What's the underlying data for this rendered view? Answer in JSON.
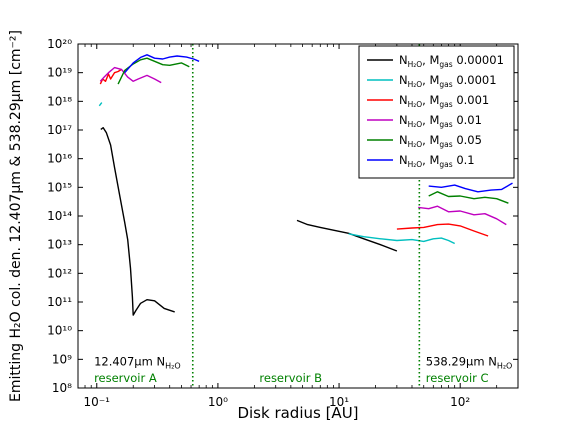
{
  "chart_data": {
    "type": "line",
    "xscale": "log",
    "yscale": "log",
    "xlabel": "Disk radius [AU]",
    "ylabel": "Emitting H₂O col. den. 12.407μm & 538.29μm [cm⁻²]",
    "xlim": [
      0.07,
      300
    ],
    "ylim": [
      100000000.0,
      1e+20
    ],
    "x_ticks": [
      {
        "value": 0.1,
        "label": "10⁻¹"
      },
      {
        "value": 1,
        "label": "10⁰"
      },
      {
        "value": 10,
        "label": "10¹"
      },
      {
        "value": 100,
        "label": "10²"
      }
    ],
    "y_ticks": [
      {
        "value": 100000000.0,
        "label": "10⁸"
      },
      {
        "value": 1000000000.0,
        "label": "10⁹"
      },
      {
        "value": 10000000000.0,
        "label": "10¹⁰"
      },
      {
        "value": 100000000000.0,
        "label": "10¹¹"
      },
      {
        "value": 1000000000000.0,
        "label": "10¹²"
      },
      {
        "value": 10000000000000.0,
        "label": "10¹³"
      },
      {
        "value": 100000000000000.0,
        "label": "10¹⁴"
      },
      {
        "value": 1000000000000000.0,
        "label": "10¹⁵"
      },
      {
        "value": 1e+16,
        "label": "10¹⁶"
      },
      {
        "value": 1e+17,
        "label": "10¹⁷"
      },
      {
        "value": 1e+18,
        "label": "10¹⁸"
      },
      {
        "value": 1e+19,
        "label": "10¹⁹"
      },
      {
        "value": 1e+20,
        "label": "10²⁰"
      }
    ],
    "vlines": [
      {
        "x": 0.62,
        "color": "#008000"
      },
      {
        "x": 46,
        "color": "#008000"
      }
    ],
    "annotations": [
      {
        "text": "12.407μm N",
        "sub": "H₂O",
        "x": 0.095,
        "y": 600000000.0,
        "color": "#000000"
      },
      {
        "text": "reservoir A",
        "x": 0.095,
        "y": 160000000.0,
        "color": "#008000"
      },
      {
        "text": "reservoir B",
        "x": 2.2,
        "y": 160000000.0,
        "color": "#008000"
      },
      {
        "text": "538.29μm N",
        "sub": "H₂O",
        "x": 52,
        "y": 600000000.0,
        "color": "#000000"
      },
      {
        "text": "reservoir C",
        "x": 52,
        "y": 160000000.0,
        "color": "#008000"
      }
    ],
    "legend_position": "top-right",
    "series": [
      {
        "name": "N_H2O, M_gas 0.00001",
        "legend": {
          "main": "N",
          "sub": "H₂O",
          "mid": ", M",
          "sub2": "gas",
          "val": " 0.00001"
        },
        "color": "#000000",
        "segments": [
          [
            [
              0.108,
              1.05e+17
            ],
            [
              0.113,
              1.2e+17
            ],
            [
              0.12,
              8e+16
            ],
            [
              0.13,
              3e+16
            ],
            [
              0.14,
              5000000000000000.0
            ],
            [
              0.155,
              500000000000000.0
            ],
            [
              0.17,
              60000000000000.0
            ],
            [
              0.18,
              15000000000000.0
            ],
            [
              0.19,
              1500000000000.0
            ],
            [
              0.197,
              150000000000.0
            ],
            [
              0.2,
              35000000000.0
            ],
            [
              0.21,
              50000000000.0
            ],
            [
              0.23,
              90000000000.0
            ],
            [
              0.26,
              120000000000.0
            ],
            [
              0.3,
              110000000000.0
            ],
            [
              0.36,
              60000000000.0
            ],
            [
              0.44,
              45000000000.0
            ]
          ],
          [
            [
              4.5,
              70000000000000.0
            ],
            [
              5.5,
              50000000000000.0
            ],
            [
              7,
              40000000000000.0
            ],
            [
              9,
              32000000000000.0
            ],
            [
              12,
              25000000000000.0
            ],
            [
              16,
              16000000000000.0
            ],
            [
              22,
              10000000000000.0
            ],
            [
              30,
              6000000000000.0
            ]
          ]
        ]
      },
      {
        "name": "N_H2O, M_gas 0.0001",
        "legend": {
          "main": "N",
          "sub": "H₂O",
          "mid": ", M",
          "sub2": "gas",
          "val": " 0.0001"
        },
        "color": "#00bfbf",
        "segments": [
          [
            [
              0.105,
              7e+17
            ],
            [
              0.11,
              9e+17
            ]
          ],
          [
            [
              12,
              24000000000000.0
            ],
            [
              16,
              19000000000000.0
            ],
            [
              22,
              16000000000000.0
            ],
            [
              30,
              14000000000000.0
            ],
            [
              40,
              15000000000000.0
            ],
            [
              50,
              13000000000000.0
            ],
            [
              60,
              16000000000000.0
            ],
            [
              70,
              17000000000000.0
            ],
            [
              80,
              14000000000000.0
            ],
            [
              90,
              11000000000000.0
            ]
          ]
        ]
      },
      {
        "name": "N_H2O, M_gas 0.001",
        "legend": {
          "main": "N",
          "sub": "H₂O",
          "mid": ", M",
          "sub2": "gas",
          "val": " 0.001"
        },
        "color": "#ff0000",
        "segments": [
          [
            [
              0.107,
              4e+18
            ],
            [
              0.112,
              6e+18
            ],
            [
              0.118,
              5e+18
            ],
            [
              0.125,
              9e+18
            ],
            [
              0.13,
              6e+18
            ],
            [
              0.14,
              1e+19
            ],
            [
              0.15,
              1.1e+19
            ],
            [
              0.16,
              1.3e+19
            ]
          ],
          [
            [
              30,
              35000000000000.0
            ],
            [
              40,
              38000000000000.0
            ],
            [
              50,
              40000000000000.0
            ],
            [
              65,
              50000000000000.0
            ],
            [
              80,
              52000000000000.0
            ],
            [
              100,
              45000000000000.0
            ],
            [
              130,
              30000000000000.0
            ],
            [
              170,
              20000000000000.0
            ]
          ]
        ]
      },
      {
        "name": "N_H2O, M_gas 0.01",
        "legend": {
          "main": "N",
          "sub": "H₂O",
          "mid": ", M",
          "sub2": "gas",
          "val": " 0.01"
        },
        "color": "#bf00bf",
        "segments": [
          [
            [
              0.107,
              5e+18
            ],
            [
              0.115,
              7e+18
            ],
            [
              0.125,
              1e+19
            ],
            [
              0.14,
              1.5e+19
            ],
            [
              0.16,
              1.3e+19
            ],
            [
              0.18,
              7e+18
            ],
            [
              0.2,
              5e+18
            ],
            [
              0.22,
              6e+18
            ],
            [
              0.26,
              8e+18
            ],
            [
              0.3,
              6e+18
            ],
            [
              0.34,
              4.5e+18
            ]
          ],
          [
            [
              45,
              200000000000000.0
            ],
            [
              55,
              180000000000000.0
            ],
            [
              65,
              220000000000000.0
            ],
            [
              80,
              140000000000000.0
            ],
            [
              100,
              150000000000000.0
            ],
            [
              130,
              110000000000000.0
            ],
            [
              160,
              120000000000000.0
            ],
            [
              200,
              80000000000000.0
            ],
            [
              240,
              50000000000000.0
            ]
          ]
        ]
      },
      {
        "name": "N_H2O, M_gas 0.05",
        "legend": {
          "main": "N",
          "sub": "H₂O",
          "mid": ", M",
          "sub2": "gas",
          "val": " 0.05"
        },
        "color": "#008000",
        "segments": [
          [
            [
              0.15,
              4e+18
            ],
            [
              0.17,
              1.2e+19
            ],
            [
              0.2,
              2e+19
            ],
            [
              0.23,
              2.8e+19
            ],
            [
              0.26,
              3.2e+19
            ],
            [
              0.3,
              2.5e+19
            ],
            [
              0.35,
              1.9e+19
            ],
            [
              0.4,
              1.8e+19
            ],
            [
              0.5,
              2.2e+19
            ],
            [
              0.58,
              1.6e+19
            ]
          ],
          [
            [
              55,
              500000000000000.0
            ],
            [
              65,
              700000000000000.0
            ],
            [
              80,
              480000000000000.0
            ],
            [
              100,
              500000000000000.0
            ],
            [
              130,
              400000000000000.0
            ],
            [
              160,
              450000000000000.0
            ],
            [
              200,
              400000000000000.0
            ],
            [
              250,
              280000000000000.0
            ]
          ]
        ]
      },
      {
        "name": "N_H2O, M_gas 0.1",
        "legend": {
          "main": "N",
          "sub": "H₂O",
          "mid": ", M",
          "sub2": "gas",
          "val": " 0.1"
        },
        "color": "#0000ff",
        "segments": [
          [
            [
              0.17,
              1e+19
            ],
            [
              0.2,
              2.2e+19
            ],
            [
              0.23,
              3.4e+19
            ],
            [
              0.26,
              4.2e+19
            ],
            [
              0.3,
              3.2e+19
            ],
            [
              0.35,
              3e+19
            ],
            [
              0.4,
              3.5e+19
            ],
            [
              0.46,
              3.8e+19
            ],
            [
              0.55,
              3.5e+19
            ],
            [
              0.63,
              3e+19
            ],
            [
              0.7,
              2.5e+19
            ]
          ],
          [
            [
              55,
              1100000000000000.0
            ],
            [
              70,
              1000000000000000.0
            ],
            [
              90,
              1200000000000000.0
            ],
            [
              110,
              900000000000000.0
            ],
            [
              140,
              700000000000000.0
            ],
            [
              180,
              800000000000000.0
            ],
            [
              220,
              850000000000000.0
            ],
            [
              270,
              1400000000000000.0
            ]
          ]
        ]
      }
    ]
  }
}
